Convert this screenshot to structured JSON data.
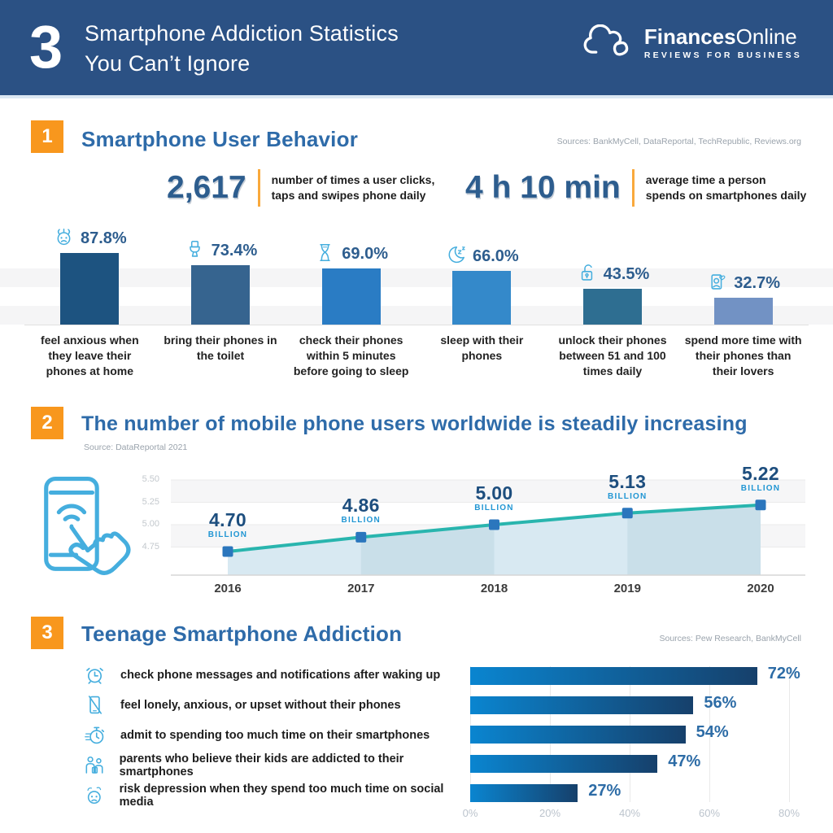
{
  "header": {
    "count": "3",
    "title_line1": "Smartphone Addiction Statistics",
    "title_line2": "You Can’t Ignore",
    "brand_bold": "Finances",
    "brand_light": "Online",
    "brand_tagline": "REVIEWS FOR BUSINESS",
    "logo_icon": "cloud-logo-icon"
  },
  "sections": [
    {
      "number": "1",
      "title": "Smartphone User Behavior",
      "sources": "Sources: BankMyCell, DataReportal, TechRepublic, Reviews.org"
    },
    {
      "number": "2",
      "title": "The number of mobile phone users worldwide is steadily increasing",
      "sources": "Source: DataReportal 2021"
    },
    {
      "number": "3",
      "title": "Teenage Smartphone Addiction",
      "sources": "Sources: Pew Research, BankMyCell"
    }
  ],
  "stats": [
    {
      "value": "2,617",
      "desc": "number of times a user clicks, taps and swipes phone daily"
    },
    {
      "value": "4 h 10 min",
      "desc": "average time a person spends on smartphones daily"
    }
  ],
  "colors": {
    "header_bg": "#2b5184",
    "accent_orange": "#f8971d",
    "heading_blue": "#2e6ba9",
    "stat_blue": "#2d5d8e",
    "icon_blue": "#45aede",
    "line_teal": "#29b5ae",
    "marker_blue": "#2b76bd",
    "billion_blue": "#2196d3",
    "value_navy": "#1d4e7e",
    "hbar_value_blue": "#2d6ca6",
    "area_fill": "#d8e9f2",
    "area_fill_dark": "#c9dfe9"
  },
  "decorative_icon": "tap-phone-icon",
  "chart_data": [
    {
      "id": "smartphone-user-behavior",
      "type": "bar",
      "categories": [
        "feel anxious when they leave their phones at home",
        "bring their phones in the toilet",
        "check their phones within 5 minutes before going to sleep",
        "sleep with their phones",
        "unlock their phones between 51 and 100 times daily",
        "spend more time with their phones than their lovers"
      ],
      "values": [
        87.8,
        73.4,
        69.0,
        66.0,
        43.5,
        32.7
      ],
      "labels": [
        "87.8%",
        "73.4%",
        "69.0%",
        "66.0%",
        "43.5%",
        "32.7%"
      ],
      "icons": [
        "anxious-face-icon",
        "toilet-icon",
        "hourglass-icon",
        "moon-sleep-icon",
        "unlock-icon",
        "phone-lover-icon"
      ],
      "bar_colors": [
        "#1d5380",
        "#36648f",
        "#2a7cc4",
        "#3489ca",
        "#2e6e91",
        "#7292c4"
      ],
      "ylim": [
        0,
        100
      ],
      "grid": "horizontal-stripes"
    },
    {
      "id": "mobile-phone-users-worldwide",
      "type": "area",
      "x": [
        "2016",
        "2017",
        "2018",
        "2019",
        "2020"
      ],
      "values": [
        4.7,
        4.86,
        5.0,
        5.13,
        5.22
      ],
      "point_labels": [
        "4.70",
        "4.86",
        "5.00",
        "5.13",
        "5.22"
      ],
      "unit_label": "BILLION",
      "yticks": [
        "5.50",
        "5.25",
        "5.00",
        "4.75"
      ],
      "ylim": [
        4.55,
        5.6
      ],
      "grid": "on"
    },
    {
      "id": "teenage-smartphone-addiction",
      "type": "bar-horizontal",
      "categories": [
        "check phone messages and notifications after waking up",
        "feel lonely, anxious, or upset without their phones",
        "admit to spending too much time on their smartphones",
        "parents who believe their kids are addicted to their smartphones",
        "risk depression when they spend too much time on social media"
      ],
      "values": [
        72,
        56,
        54,
        47,
        27
      ],
      "labels": [
        "72%",
        "56%",
        "54%",
        "47%",
        "27%"
      ],
      "icons": [
        "alarm-clock-icon",
        "phone-slash-icon",
        "stopwatch-icon",
        "family-icon",
        "sad-face-icon"
      ],
      "xticks": [
        "0%",
        "20%",
        "40%",
        "60%",
        "80%"
      ],
      "xlim": [
        0,
        80
      ],
      "grid": "vertical"
    }
  ]
}
